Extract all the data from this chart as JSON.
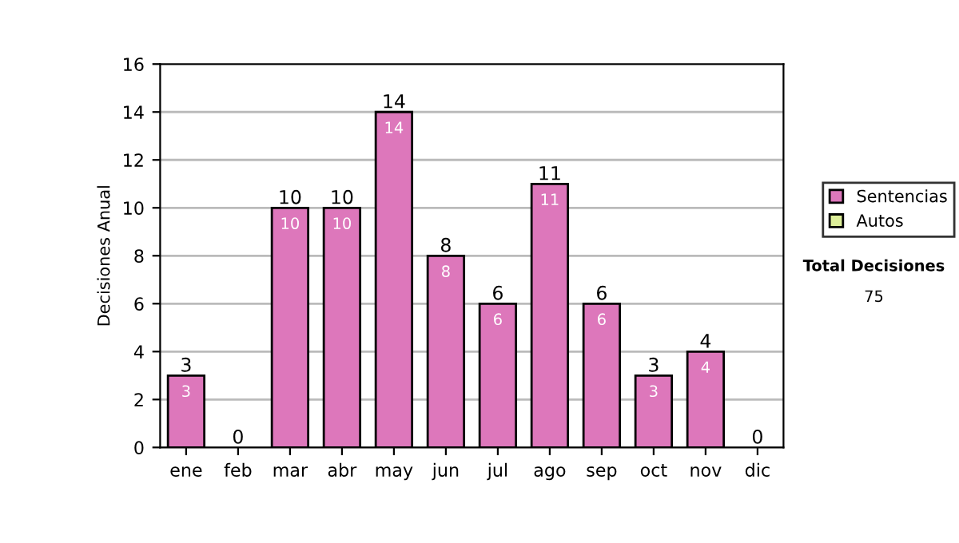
{
  "chart_data": {
    "type": "bar",
    "ylabel": "Decisiones Anual",
    "categories": [
      "ene",
      "feb",
      "mar",
      "abr",
      "may",
      "jun",
      "jul",
      "ago",
      "sep",
      "oct",
      "nov",
      "dic"
    ],
    "stacked": true,
    "series": [
      {
        "name": "Sentencias",
        "color": "#dd77bb",
        "values": [
          3,
          0,
          10,
          10,
          14,
          8,
          6,
          11,
          6,
          3,
          4,
          0
        ],
        "value_labels": [
          "3",
          null,
          "10",
          "10",
          "14",
          "8",
          "6",
          "11",
          "6",
          "3",
          "4",
          null
        ]
      },
      {
        "name": "Autos",
        "color": "#ddee99",
        "values": [
          0,
          0,
          0,
          0,
          0,
          0,
          0,
          0,
          0,
          0,
          0,
          0
        ]
      }
    ],
    "totals": [
      "3",
      "0",
      "10",
      "10",
      "14",
      "8",
      "6",
      "11",
      "6",
      "3",
      "4",
      "0"
    ],
    "ylim": [
      0,
      16
    ],
    "yticks": [
      0,
      2,
      4,
      6,
      8,
      10,
      12,
      14,
      16
    ],
    "grid": "y",
    "legend": "right",
    "annotations": [
      "Total Decisiones",
      "75"
    ]
  }
}
